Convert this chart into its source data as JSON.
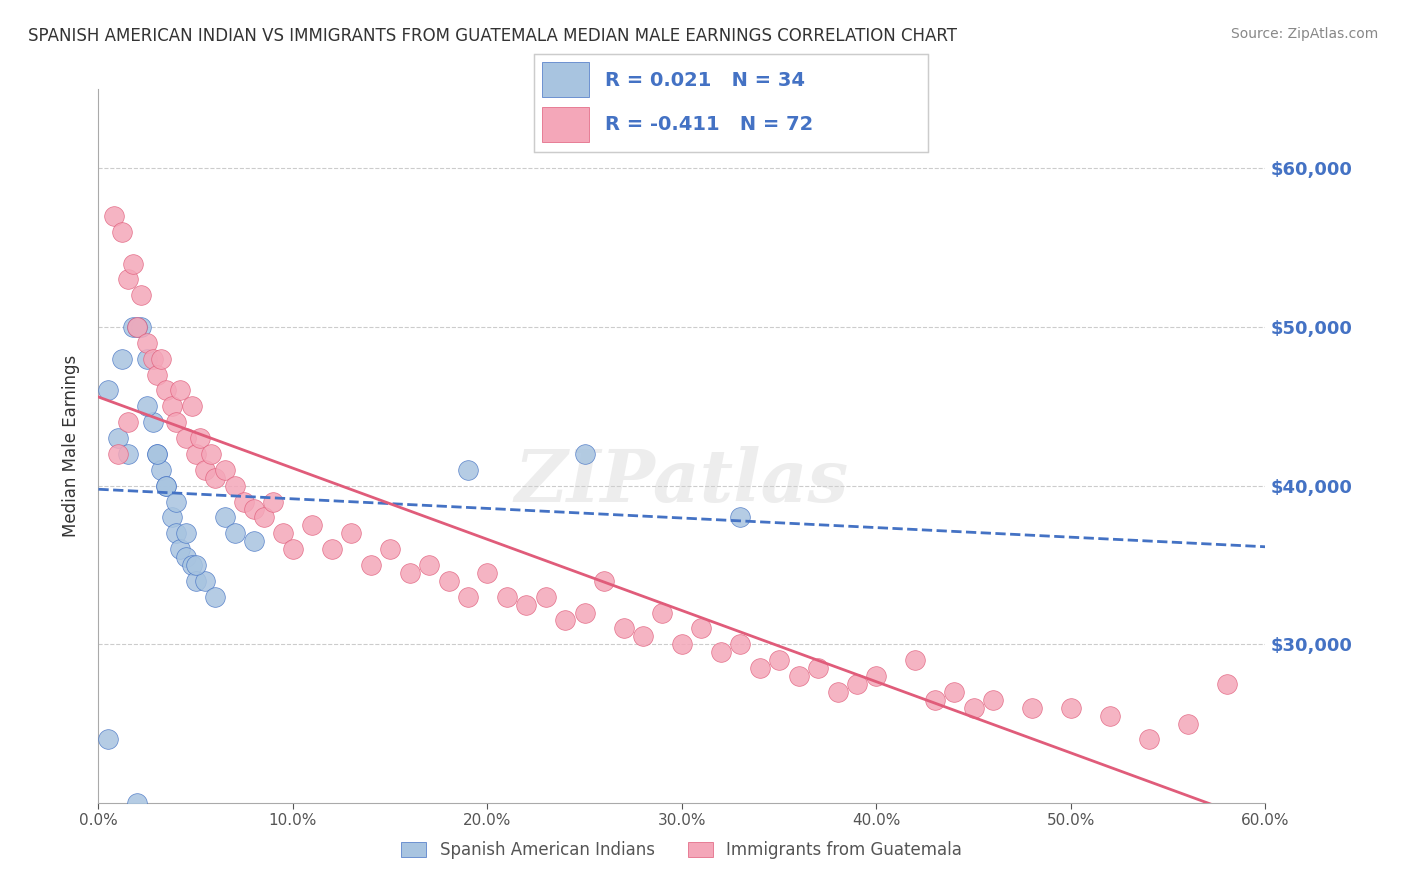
{
  "title": "SPANISH AMERICAN INDIAN VS IMMIGRANTS FROM GUATEMALA MEDIAN MALE EARNINGS CORRELATION CHART",
  "source": "Source: ZipAtlas.com",
  "ylabel": "Median Male Earnings",
  "xlabel": "",
  "xlim": [
    0.0,
    0.6
  ],
  "ylim": [
    20000,
    65000
  ],
  "yticks": [
    30000,
    40000,
    50000,
    60000
  ],
  "ytick_labels": [
    "$30,000",
    "$40,000",
    "$50,000",
    "$60,000"
  ],
  "xticks": [
    0.0,
    0.1,
    0.2,
    0.3,
    0.4,
    0.5,
    0.6
  ],
  "xtick_labels": [
    "0.0%",
    "10.0%",
    "20.0%",
    "30.0%",
    "40.0%",
    "50.0%",
    "60.0%"
  ],
  "blue_color": "#a8c4e0",
  "pink_color": "#f4a7b9",
  "blue_line_color": "#4472c4",
  "pink_line_color": "#e05c7a",
  "right_label_color": "#4472c4",
  "R_blue": 0.021,
  "N_blue": 34,
  "R_pink": -0.411,
  "N_pink": 72,
  "legend_label_blue": "Spanish American Indians",
  "legend_label_pink": "Immigrants from Guatemala",
  "watermark": "ZIPatlas",
  "blue_scatter_x": [
    0.005,
    0.012,
    0.018,
    0.022,
    0.025,
    0.028,
    0.03,
    0.032,
    0.035,
    0.038,
    0.04,
    0.042,
    0.045,
    0.048,
    0.05,
    0.055,
    0.06,
    0.065,
    0.07,
    0.08,
    0.005,
    0.01,
    0.015,
    0.02,
    0.025,
    0.03,
    0.035,
    0.04,
    0.045,
    0.05,
    0.19,
    0.25,
    0.33,
    0.02
  ],
  "blue_scatter_y": [
    24000,
    48000,
    50000,
    50000,
    48000,
    44000,
    42000,
    41000,
    40000,
    38000,
    37000,
    36000,
    35500,
    35000,
    34000,
    34000,
    33000,
    38000,
    37000,
    36500,
    46000,
    43000,
    42000,
    50000,
    45000,
    42000,
    40000,
    39000,
    37000,
    35000,
    41000,
    42000,
    38000,
    20000
  ],
  "pink_scatter_x": [
    0.008,
    0.012,
    0.015,
    0.018,
    0.02,
    0.022,
    0.025,
    0.028,
    0.03,
    0.032,
    0.035,
    0.038,
    0.04,
    0.042,
    0.045,
    0.048,
    0.05,
    0.052,
    0.055,
    0.058,
    0.06,
    0.065,
    0.07,
    0.075,
    0.08,
    0.085,
    0.09,
    0.095,
    0.1,
    0.11,
    0.12,
    0.13,
    0.14,
    0.15,
    0.16,
    0.17,
    0.18,
    0.19,
    0.2,
    0.21,
    0.22,
    0.23,
    0.24,
    0.25,
    0.26,
    0.27,
    0.28,
    0.29,
    0.3,
    0.31,
    0.32,
    0.33,
    0.34,
    0.35,
    0.36,
    0.37,
    0.38,
    0.39,
    0.4,
    0.42,
    0.43,
    0.44,
    0.45,
    0.46,
    0.48,
    0.5,
    0.52,
    0.54,
    0.56,
    0.58,
    0.01,
    0.015
  ],
  "pink_scatter_y": [
    57000,
    56000,
    53000,
    54000,
    50000,
    52000,
    49000,
    48000,
    47000,
    48000,
    46000,
    45000,
    44000,
    46000,
    43000,
    45000,
    42000,
    43000,
    41000,
    42000,
    40500,
    41000,
    40000,
    39000,
    38500,
    38000,
    39000,
    37000,
    36000,
    37500,
    36000,
    37000,
    35000,
    36000,
    34500,
    35000,
    34000,
    33000,
    34500,
    33000,
    32500,
    33000,
    31500,
    32000,
    34000,
    31000,
    30500,
    32000,
    30000,
    31000,
    29500,
    30000,
    28500,
    29000,
    28000,
    28500,
    27000,
    27500,
    28000,
    29000,
    26500,
    27000,
    26000,
    26500,
    26000,
    26000,
    25500,
    24000,
    25000,
    27500,
    42000,
    44000
  ]
}
